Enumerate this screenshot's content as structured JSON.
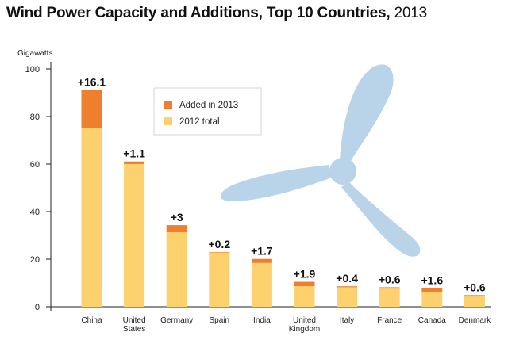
{
  "chart_data": {
    "type": "bar",
    "stacked": true,
    "title": "Wind Power Capacity and Additions, Top 10 Countries,",
    "title_year": "2013",
    "ylabel": "Gigawatts",
    "xlabel": "",
    "ylim": [
      0,
      100
    ],
    "yticks": [
      0,
      20,
      40,
      60,
      80,
      100
    ],
    "grid": false,
    "legend_position": "top-center",
    "categories": [
      [
        "China"
      ],
      [
        "United",
        "States"
      ],
      [
        "Germany"
      ],
      [
        "Spain"
      ],
      [
        "India"
      ],
      [
        "United",
        "Kingdom"
      ],
      [
        "Italy"
      ],
      [
        "France"
      ],
      [
        "Canada"
      ],
      [
        "Denmark"
      ]
    ],
    "series": [
      {
        "name": "2012 total",
        "color": "#fdd26e",
        "values": [
          75.0,
          60.0,
          31.3,
          22.8,
          18.4,
          8.6,
          8.2,
          7.6,
          6.2,
          4.3
        ]
      },
      {
        "name": "Added in 2013",
        "color": "#ee7f2d",
        "values": [
          16.1,
          1.1,
          3.0,
          0.2,
          1.7,
          1.9,
          0.4,
          0.6,
          1.6,
          0.6
        ]
      }
    ],
    "data_labels": [
      "+16.1",
      "+1.1",
      "+3",
      "+0.2",
      "+1.7",
      "+1.9",
      "+0.4",
      "+0.6",
      "+1.6",
      "+0.6"
    ],
    "decoration": "wind-turbine-icon",
    "decoration_color": "#b9d3e8"
  }
}
